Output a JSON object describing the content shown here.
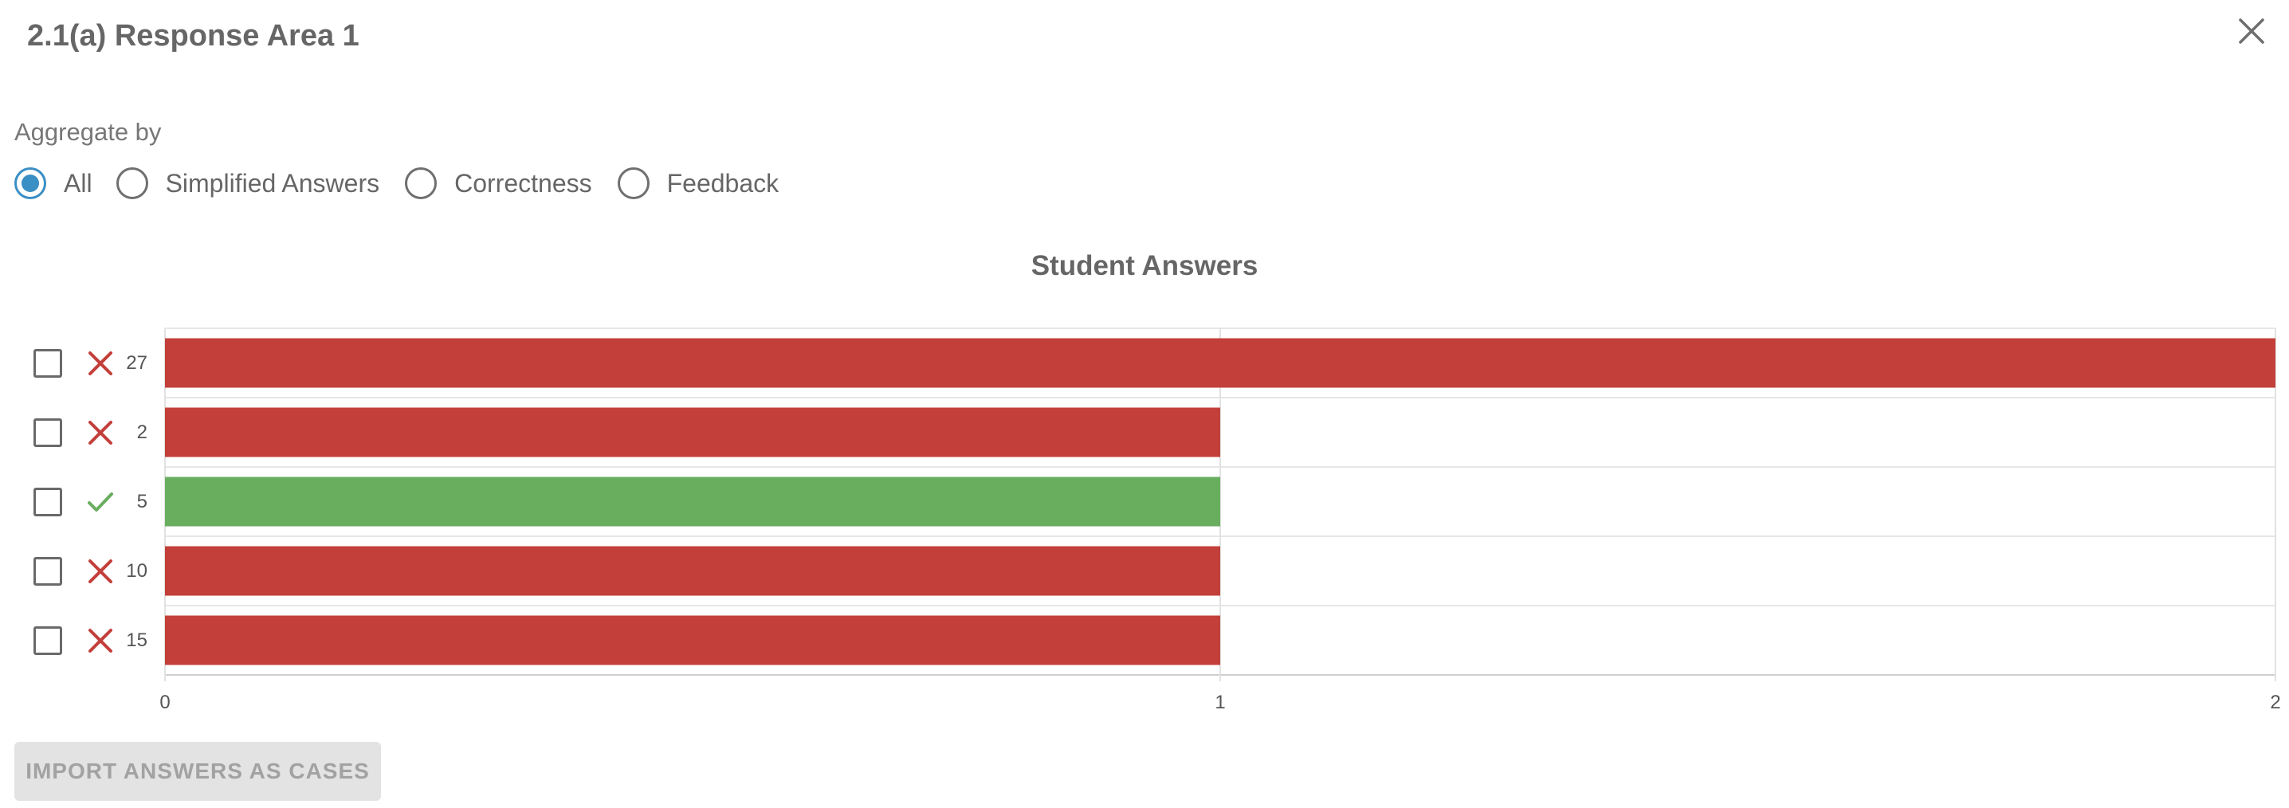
{
  "dialog": {
    "title": "2.1(a) Response Area 1"
  },
  "aggregate": {
    "label": "Aggregate by",
    "options": [
      {
        "label": "All",
        "selected": true
      },
      {
        "label": "Simplified Answers",
        "selected": false
      },
      {
        "label": "Correctness",
        "selected": false
      },
      {
        "label": "Feedback",
        "selected": false
      }
    ]
  },
  "colors": {
    "incorrect": "#c33f3a",
    "correct": "#69ae5f",
    "accent": "#3a8fc4"
  },
  "chart_data": {
    "type": "bar",
    "orientation": "horizontal",
    "title": "Student Answers",
    "categories": [
      "27",
      "2",
      "5",
      "10",
      "15"
    ],
    "correctness": [
      "incorrect",
      "incorrect",
      "correct",
      "incorrect",
      "incorrect"
    ],
    "values": [
      2,
      1,
      1,
      1,
      1
    ],
    "xlim": [
      0,
      2
    ],
    "xticks": [
      "0",
      "1",
      "2"
    ],
    "grid": true
  },
  "actions": {
    "import_label": "IMPORT ANSWERS AS CASES"
  }
}
